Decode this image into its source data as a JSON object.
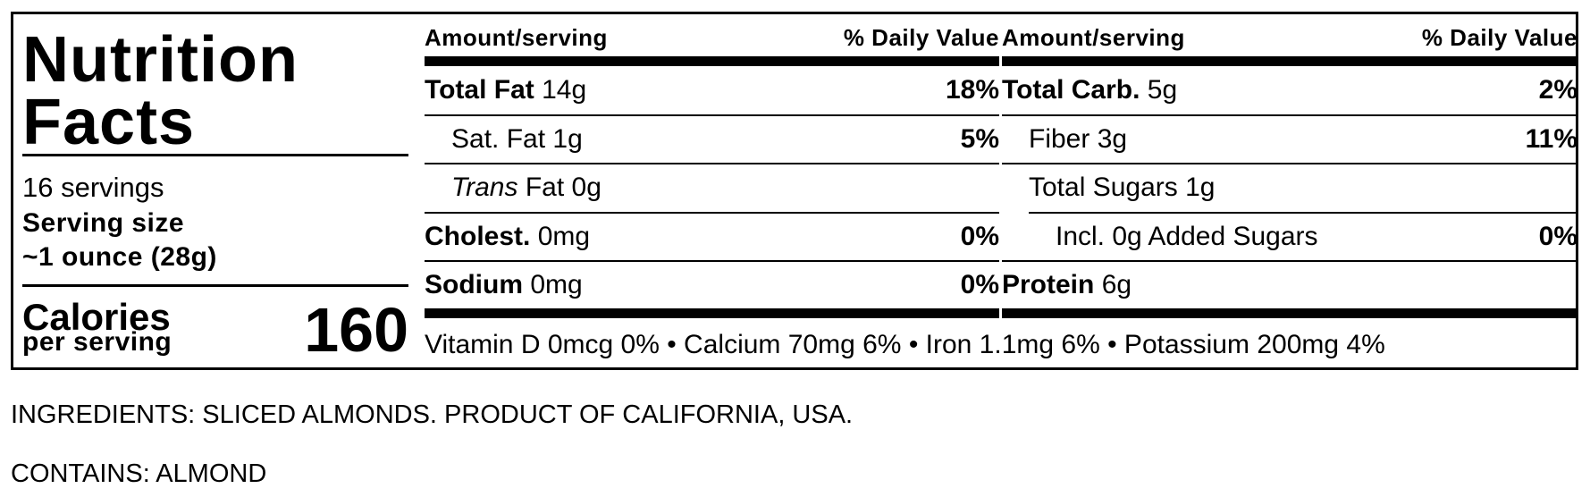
{
  "title_line1": "Nutrition",
  "title_line2": "Facts",
  "servings": "16 servings",
  "serving_size_label": "Serving size",
  "serving_size_value": "~1 ounce (28g)",
  "calories_label": "Calories",
  "calories_sub": "per serving",
  "calories_value": "160",
  "header": {
    "amount": "Amount/serving",
    "dv": "% Daily Value"
  },
  "left_column": [
    {
      "name": "Total Fat",
      "amount": "14g",
      "dv": "18%"
    },
    {
      "name": "Sat. Fat",
      "amount": "1g",
      "dv": "5%"
    },
    {
      "name_italic": "Trans",
      "name": "Fat",
      "amount": "0g",
      "dv": ""
    },
    {
      "name": "Cholest.",
      "amount": "0mg",
      "dv": "0%"
    },
    {
      "name": "Sodium",
      "amount": "0mg",
      "dv": "0%"
    }
  ],
  "right_column": [
    {
      "name": "Total Carb.",
      "amount": "5g",
      "dv": "2%"
    },
    {
      "name": "Fiber",
      "amount": "3g",
      "dv": "11%"
    },
    {
      "name": "Total Sugars",
      "amount": "1g",
      "dv": ""
    },
    {
      "name": "Incl. 0g Added Sugars",
      "amount": "",
      "dv": "0%"
    },
    {
      "name": "Protein",
      "amount": "6g",
      "dv": ""
    }
  ],
  "vitamins": "Vitamin D 0mcg 0% • Calcium 70mg 6% • Iron 1.1mg 6% • Potassium 200mg 4%",
  "ingredients": "INGREDIENTS: SLICED ALMONDS. PRODUCT OF CALIFORNIA, USA.",
  "contains": "CONTAINS: ALMOND"
}
